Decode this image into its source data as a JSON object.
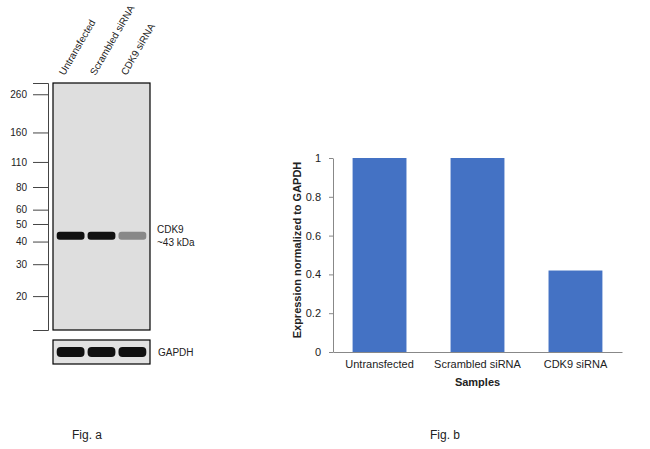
{
  "chart_data": [
    {
      "type": "western_blot",
      "caption": "Fig. a",
      "categories": [
        "Untransfected",
        "Scrambled siRNA",
        "CDK9 siRNA"
      ],
      "log": "y",
      "ylim": [
        13,
        300
      ],
      "yticks": [
        260,
        160,
        110,
        80,
        60,
        50,
        40,
        30,
        20
      ],
      "band": {
        "label": "CDK9",
        "mw_label": "~43 kDa",
        "kda": 43,
        "intensities": [
          1,
          1,
          0.42
        ]
      },
      "loading_control": {
        "label": "GAPDH",
        "intensities": [
          1,
          1,
          1
        ]
      }
    },
    {
      "type": "bar",
      "caption": "Fig. b",
      "categories": [
        "Untransfected",
        "Scrambled siRNA",
        "CDK9 siRNA"
      ],
      "values": [
        1,
        1,
        0.42
      ],
      "color": "#4472c4",
      "ylim": [
        0,
        1
      ],
      "yticks": [
        0,
        0.2,
        0.4,
        0.6,
        0.8,
        1
      ],
      "ylabel": "Expression normalized to GAPDH",
      "xlabel": "Samples",
      "grid": false
    }
  ]
}
